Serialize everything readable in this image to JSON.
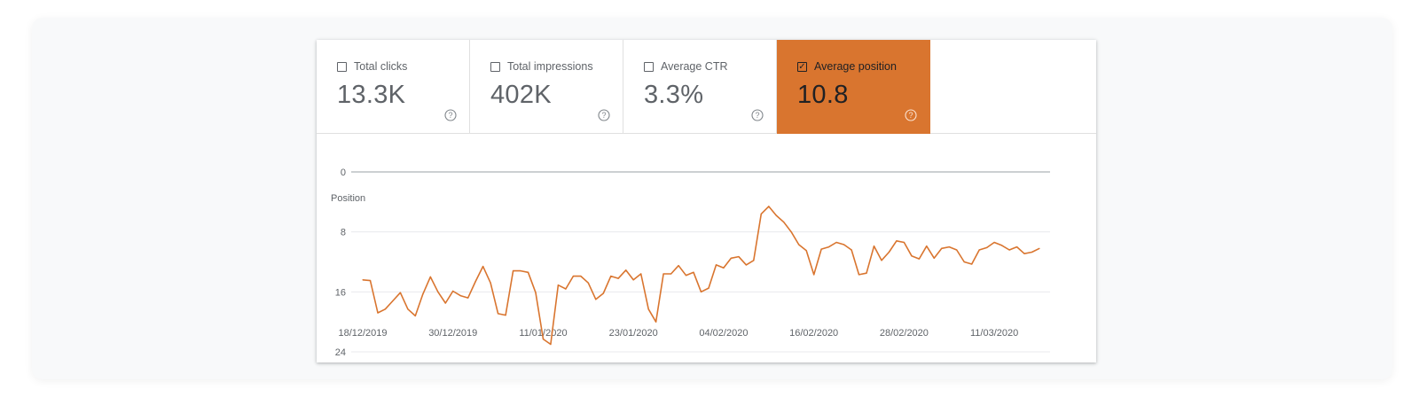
{
  "metrics": [
    {
      "label": "Total clicks",
      "value": "13.3K",
      "checked": false,
      "icon": "help-circle-icon"
    },
    {
      "label": "Total impressions",
      "value": "402K",
      "checked": false,
      "icon": "help-circle-icon"
    },
    {
      "label": "Average CTR",
      "value": "3.3%",
      "checked": false,
      "icon": "help-circle-icon"
    },
    {
      "label": "Average position",
      "value": "10.8",
      "checked": true,
      "icon": "help-circle-icon"
    }
  ],
  "colors": {
    "accent": "#d9752f",
    "line": "#d9752f",
    "grid": "#e8eaed"
  },
  "chart_data": {
    "type": "line",
    "ylabel": "Position",
    "y_inverted": true,
    "ylim": [
      0,
      24
    ],
    "yticks": [
      "0",
      "8",
      "16",
      "24"
    ],
    "xticks": [
      "18/12/2019",
      "30/12/2019",
      "11/01/2020",
      "23/01/2020",
      "04/02/2020",
      "16/02/2020",
      "28/02/2020",
      "11/03/2020"
    ],
    "x_start": "18/12/2019",
    "x_end": "19/03/2020",
    "grid": true,
    "series": [
      {
        "values": [
          14.4,
          14.5,
          18.8,
          18.3,
          17.2,
          16.1,
          18.3,
          19.2,
          16.3,
          14.0,
          16.0,
          17.5,
          15.9,
          16.5,
          16.8,
          14.6,
          12.6,
          14.8,
          18.9,
          19.1,
          13.2,
          13.2,
          13.4,
          16.1,
          22.3,
          23.0,
          15.1,
          15.6,
          13.9,
          13.9,
          14.8,
          17.0,
          16.2,
          13.9,
          14.2,
          13.1,
          14.4,
          13.6,
          18.3,
          20.0,
          13.6,
          13.6,
          12.5,
          13.8,
          13.4,
          16.0,
          15.5,
          12.4,
          12.8,
          11.5,
          11.3,
          12.4,
          11.8,
          5.6,
          4.6,
          5.8,
          6.7,
          8.0,
          9.7,
          10.5,
          13.7,
          10.3,
          10.0,
          9.4,
          9.7,
          10.4,
          13.7,
          13.5,
          9.9,
          11.8,
          10.7,
          9.2,
          9.4,
          11.2,
          11.6,
          9.9,
          11.5,
          10.2,
          10.0,
          10.4,
          12.0,
          12.3,
          10.4,
          10.1,
          9.4,
          9.8,
          10.4,
          10.0,
          10.9,
          10.7,
          10.2
        ]
      }
    ]
  }
}
